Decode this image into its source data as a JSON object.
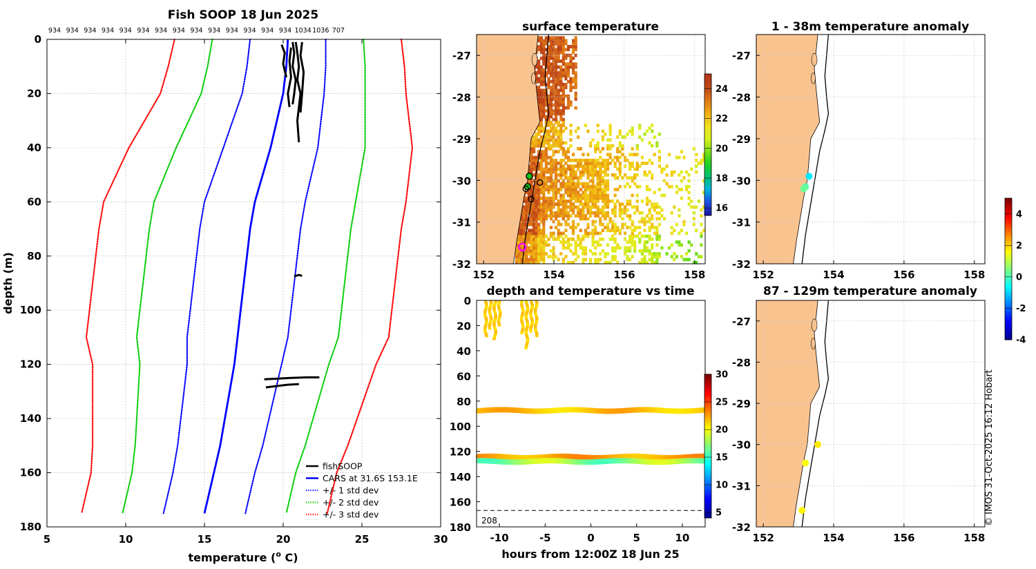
{
  "chart_data": [
    {
      "id": "profile",
      "type": "line",
      "title": "Fish SOOP 18 Jun 2025",
      "xlabel": "temperature (",
      "xlabel_sup": "o",
      "xlabel_tail": " C)",
      "ylabel": "depth (m)",
      "xlim": [
        5,
        30
      ],
      "ylim": [
        0,
        180
      ],
      "xticks": [
        5,
        10,
        15,
        20,
        25,
        30
      ],
      "yticks": [
        0,
        20,
        40,
        60,
        80,
        100,
        120,
        140,
        160,
        180
      ],
      "top_counts": [
        "934",
        "934",
        "934",
        "934",
        "934",
        "934",
        "934",
        "934",
        "934",
        "934",
        "934",
        "934",
        "934",
        "934",
        "1034",
        "1036",
        "707"
      ],
      "cars_depth": [
        0,
        10,
        20,
        30,
        40,
        50,
        60,
        70,
        80,
        90,
        100,
        110,
        120,
        130,
        140,
        150,
        160,
        170,
        175
      ],
      "cars_temp": [
        20.3,
        20.2,
        20.0,
        19.6,
        19.2,
        18.7,
        18.2,
        17.9,
        17.7,
        17.5,
        17.3,
        17.1,
        16.9,
        16.6,
        16.3,
        16.0,
        15.6,
        15.2,
        15.0
      ],
      "std_spread": [
        2.4,
        2.5,
        2.6,
        2.8,
        3.0,
        3.1,
        3.2,
        3.2,
        3.2,
        3.2,
        3.2,
        3.2,
        3.0,
        2.9,
        2.8,
        2.7,
        2.6,
        2.6,
        2.6
      ],
      "series": [
        {
          "name": "fishSOOP",
          "color": "#000000",
          "style": "solid"
        },
        {
          "name": "CARS at 31.6S 153.1E",
          "color": "#0000ff",
          "style": "solid"
        },
        {
          "name": "+/- 1 std dev",
          "color": "#0000ff",
          "style": "dotted",
          "multiplier": 1
        },
        {
          "name": "+/- 2 std dev",
          "color": "#00cc00",
          "style": "dotted",
          "multiplier": 2
        },
        {
          "name": "+/- 3 std dev",
          "color": "#ff0000",
          "style": "dotted",
          "multiplier": 3
        }
      ],
      "fishsoop_segments": [
        {
          "temp": [
            20.8,
            20.9,
            21.0,
            20.9,
            21.1,
            21.0,
            20.9,
            21.0
          ],
          "depth": [
            1,
            5,
            10,
            15,
            20,
            25,
            30,
            38
          ]
        },
        {
          "temp": [
            20.6,
            20.7,
            20.6,
            20.8,
            20.7,
            20.6
          ],
          "depth": [
            1,
            5,
            10,
            15,
            20,
            24
          ]
        },
        {
          "temp": [
            21.2,
            21.1,
            21.3,
            21.2,
            21.1
          ],
          "depth": [
            1,
            6,
            12,
            20,
            27
          ]
        },
        {
          "temp": [
            20.5,
            20.4,
            20.5,
            20.3,
            20.4
          ],
          "depth": [
            3,
            8,
            14,
            20,
            25
          ]
        },
        {
          "temp": [
            19.9,
            20.1,
            20.0,
            20.2
          ],
          "depth": [
            2,
            5,
            9,
            14
          ]
        },
        {
          "temp": [
            20.7,
            21.0,
            21.2
          ],
          "depth": [
            87.5,
            87.0,
            87.3
          ]
        },
        {
          "temp": [
            18.8,
            19.5,
            20.5,
            21.5,
            22.3
          ],
          "depth": [
            125.5,
            125.3,
            125.0,
            124.8,
            124.8
          ]
        },
        {
          "temp": [
            18.9,
            19.6,
            20.3,
            21.0
          ],
          "depth": [
            128.5,
            128.0,
            127.5,
            127.3
          ]
        }
      ],
      "legend_position": "bottom-right"
    },
    {
      "id": "surface-temp",
      "type": "heatmap",
      "title": "surface temperature",
      "xlim": [
        151.8,
        158.3
      ],
      "ylim": [
        -32,
        -26.5
      ],
      "xticks": [
        152,
        154,
        156,
        158
      ],
      "yticks": [
        -27,
        -28,
        -29,
        -30,
        -31,
        -32
      ],
      "colorbar": {
        "min": 15.5,
        "max": 25,
        "ticks": [
          16,
          18,
          20,
          22,
          24
        ]
      },
      "stations": [
        [
          153.3,
          -29.9
        ],
        [
          153.25,
          -30.15
        ],
        [
          153.2,
          -30.2
        ],
        [
          153.35,
          -30.45
        ],
        [
          153.6,
          -30.05
        ]
      ],
      "current_station": [
        153.1,
        -31.6
      ]
    },
    {
      "id": "depth-time",
      "type": "scatter",
      "title": "depth and temperature vs time",
      "xlabel": "hours from 12:00Z 18 Jun 25",
      "xlim": [
        -12.5,
        12.5
      ],
      "ylim": [
        0,
        180
      ],
      "xticks": [
        -10,
        -5,
        0,
        5,
        10
      ],
      "yticks": [
        0,
        20,
        40,
        60,
        80,
        100,
        120,
        140,
        160,
        180
      ],
      "reference_depths": [
        87,
        167
      ],
      "bottom_label": "208",
      "colorbar": {
        "min": 4,
        "max": 30,
        "ticks": [
          5,
          10,
          15,
          20,
          25,
          30
        ]
      },
      "bands": [
        {
          "depth": 87.5,
          "temp": 21.8
        },
        {
          "depth": 124.5,
          "temp": 22.5
        },
        {
          "depth": 128,
          "temp": 17.5
        }
      ],
      "upper_casts": [
        {
          "hour": -11.5,
          "max_depth": 28
        },
        {
          "hour": -11.0,
          "max_depth": 22
        },
        {
          "hour": -10.5,
          "max_depth": 30
        },
        {
          "hour": -10.0,
          "max_depth": 20
        },
        {
          "hour": -7.5,
          "max_depth": 26
        },
        {
          "hour": -7.0,
          "max_depth": 38
        },
        {
          "hour": -6.5,
          "max_depth": 24
        },
        {
          "hour": -6.0,
          "max_depth": 28
        }
      ]
    },
    {
      "id": "anomaly-upper",
      "type": "scatter",
      "title": "1 - 38m temperature anomaly",
      "xlim": [
        151.8,
        158.3
      ],
      "ylim": [
        -32,
        -26.5
      ],
      "xticks": [
        152,
        154,
        156,
        158
      ],
      "yticks": [
        -27,
        -28,
        -29,
        -30,
        -31,
        -32
      ],
      "points": [
        {
          "lon": 153.3,
          "lat": -29.9,
          "anomaly": -0.8
        },
        {
          "lon": 153.2,
          "lat": -30.15,
          "anomaly": 0.2
        },
        {
          "lon": 153.15,
          "lat": -30.2,
          "anomaly": 0.3
        }
      ]
    },
    {
      "id": "anomaly-lower",
      "type": "scatter",
      "title": "87 - 129m temperature anomaly",
      "xlim": [
        151.8,
        158.3
      ],
      "ylim": [
        -32,
        -26.5
      ],
      "xticks": [
        152,
        154,
        156,
        158
      ],
      "yticks": [
        -27,
        -28,
        -29,
        -30,
        -31,
        -32
      ],
      "points": [
        {
          "lon": 153.55,
          "lat": -30.0,
          "anomaly": 1.8
        },
        {
          "lon": 153.2,
          "lat": -30.45,
          "anomaly": 1.6
        },
        {
          "lon": 153.1,
          "lat": -31.6,
          "anomaly": 1.7
        }
      ],
      "colorbar": {
        "min": -4,
        "max": 5,
        "ticks": [
          -4,
          -2,
          0,
          2,
          4
        ]
      }
    }
  ],
  "credit": "© IMOS 31-Oct-2025 16:12 Hobart"
}
